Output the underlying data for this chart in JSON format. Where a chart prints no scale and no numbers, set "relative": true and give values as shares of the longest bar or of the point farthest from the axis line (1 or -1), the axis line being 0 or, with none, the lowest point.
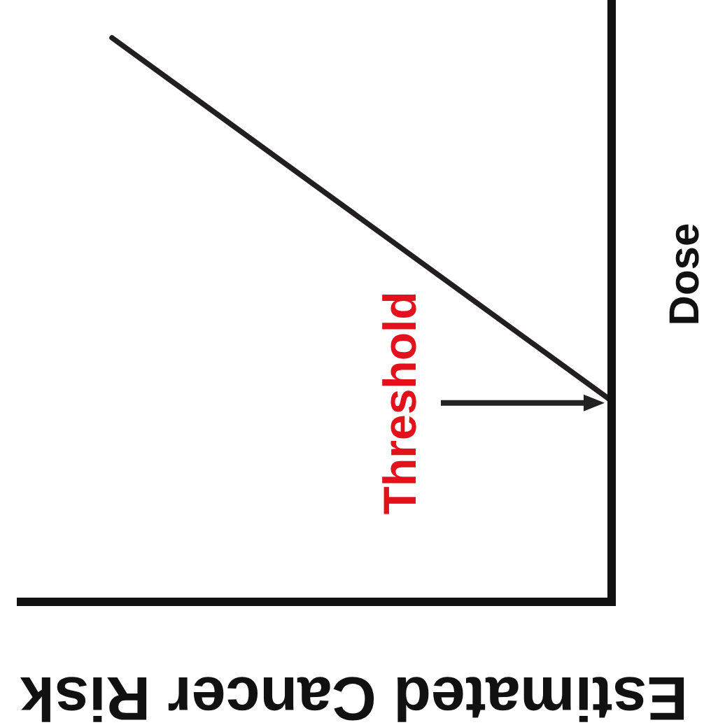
{
  "chart_data": {
    "type": "line",
    "relative": true,
    "categories": [
      null,
      null
    ],
    "series": [
      {
        "color": "#231f20",
        "values": [
          1,
          0.36
        ]
      }
    ],
    "xlabel": "Estimated Cancer Risk",
    "ylabel": "Dose",
    "annotations": [
      "Threshold"
    ]
  }
}
